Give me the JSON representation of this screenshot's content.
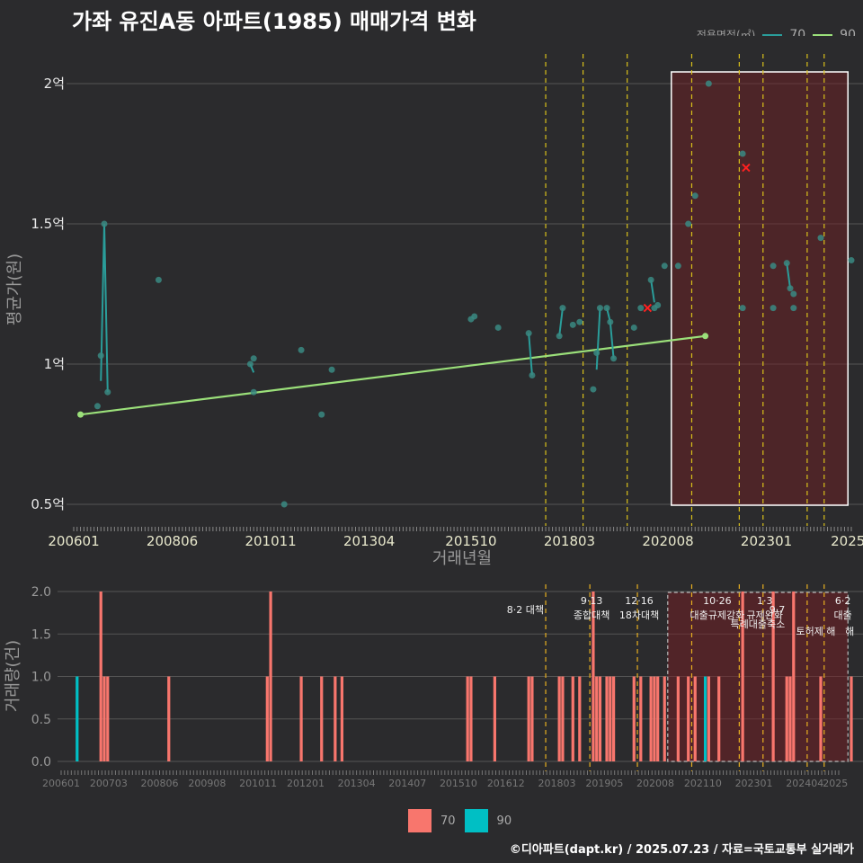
{
  "title": "가좌 유진A동 아파트(1985) 매매가격 변화",
  "legend_top": {
    "title": "전용면적(㎡)",
    "items": [
      {
        "label": "70",
        "color": "#2a9d9a"
      },
      {
        "label": "90",
        "color": "#9be07a"
      }
    ]
  },
  "legend_bottom": {
    "items": [
      {
        "label": "70",
        "color": "#f8766d"
      },
      {
        "label": "90",
        "color": "#00bfc4"
      }
    ]
  },
  "footer": "©디아파트(dapt.kr) / 2025.07.23 / 자료=국토교통부 실거래가",
  "chart_data": [
    {
      "type": "line",
      "xlabel": "거래년월",
      "ylabel": "평균가(원)",
      "ylim": [
        0.5,
        2.0
      ],
      "yticks": [
        {
          "value": 0.5,
          "label": "0.5억"
        },
        {
          "value": 1.0,
          "label": "1억"
        },
        {
          "value": 1.5,
          "label": "1.5억"
        },
        {
          "value": 2.0,
          "label": "2억"
        }
      ],
      "xticks": [
        "200601",
        "200806",
        "201011",
        "201304",
        "201510",
        "201803",
        "202008",
        "202301",
        "2025"
      ],
      "xtick_months": [
        0,
        29,
        58,
        87,
        117,
        146,
        175,
        204,
        228
      ],
      "policy_lines": [
        139,
        150,
        163,
        182,
        196,
        203,
        216,
        221
      ],
      "highlight_range": [
        176,
        228
      ],
      "series": [
        {
          "name": "70",
          "color": "#2a9d9a",
          "points": [
            {
              "m": 7,
              "v": 0.85
            },
            {
              "m": 8,
              "v": 1.03
            },
            {
              "m": 9,
              "v": 1.5
            },
            {
              "m": 10,
              "v": 0.9
            },
            {
              "m": 25,
              "v": 1.3
            },
            {
              "m": 52,
              "v": 1.0
            },
            {
              "m": 53,
              "v": 1.02
            },
            {
              "m": 53,
              "v": 0.9
            },
            {
              "m": 62,
              "v": 0.5
            },
            {
              "m": 67,
              "v": 1.05
            },
            {
              "m": 73,
              "v": 0.82
            },
            {
              "m": 76,
              "v": 0.98
            },
            {
              "m": 117,
              "v": 1.16
            },
            {
              "m": 118,
              "v": 1.17
            },
            {
              "m": 125,
              "v": 1.13
            },
            {
              "m": 134,
              "v": 1.11
            },
            {
              "m": 135,
              "v": 0.96
            },
            {
              "m": 143,
              "v": 1.1
            },
            {
              "m": 144,
              "v": 1.2
            },
            {
              "m": 147,
              "v": 1.14
            },
            {
              "m": 149,
              "v": 1.15
            },
            {
              "m": 153,
              "v": 0.91
            },
            {
              "m": 154,
              "v": 1.04
            },
            {
              "m": 155,
              "v": 1.2
            },
            {
              "m": 157,
              "v": 1.2
            },
            {
              "m": 158,
              "v": 1.15
            },
            {
              "m": 159,
              "v": 1.02
            },
            {
              "m": 165,
              "v": 1.13
            },
            {
              "m": 167,
              "v": 1.2
            },
            {
              "m": 170,
              "v": 1.3
            },
            {
              "m": 171,
              "v": 1.2
            },
            {
              "m": 172,
              "v": 1.21
            },
            {
              "m": 174,
              "v": 1.35
            },
            {
              "m": 178,
              "v": 1.35
            },
            {
              "m": 181,
              "v": 1.5
            },
            {
              "m": 183,
              "v": 1.6
            },
            {
              "m": 187,
              "v": 2.0
            },
            {
              "m": 197,
              "v": 1.75
            },
            {
              "m": 197,
              "v": 1.2
            },
            {
              "m": 206,
              "v": 1.35
            },
            {
              "m": 206,
              "v": 1.2
            },
            {
              "m": 210,
              "v": 1.36
            },
            {
              "m": 211,
              "v": 1.27
            },
            {
              "m": 212,
              "v": 1.25
            },
            {
              "m": 212,
              "v": 1.2
            },
            {
              "m": 220,
              "v": 1.45
            },
            {
              "m": 229,
              "v": 1.37
            }
          ],
          "line_segments": [
            [
              [
                8,
                0.94
              ],
              [
                9,
                1.5
              ],
              [
                10,
                0.9
              ]
            ],
            [
              [
                52,
                1.0
              ],
              [
                53,
                0.97
              ]
            ],
            [
              [
                134,
                1.11
              ],
              [
                135,
                0.96
              ]
            ],
            [
              [
                143,
                1.1
              ],
              [
                144,
                1.2
              ]
            ],
            [
              [
                154,
                0.98
              ],
              [
                155,
                1.2
              ]
            ],
            [
              [
                157,
                1.2
              ],
              [
                158,
                1.15
              ],
              [
                159,
                1.02
              ]
            ],
            [
              [
                170,
                1.3
              ],
              [
                171,
                1.22
              ]
            ],
            [
              [
                210,
                1.36
              ],
              [
                211,
                1.27
              ]
            ]
          ]
        },
        {
          "name": "90",
          "color": "#9be07a",
          "points": [
            {
              "m": 2,
              "v": 0.82
            },
            {
              "m": 186,
              "v": 1.1
            }
          ]
        }
      ],
      "markers": [
        {
          "m": 169,
          "v": 1.2,
          "symbol": "x",
          "color": "#ff2020"
        },
        {
          "m": 198,
          "v": 1.7,
          "symbol": "x",
          "color": "#ff2020"
        }
      ]
    },
    {
      "type": "bar",
      "ylabel": "거래량(건)",
      "ylim": [
        0,
        2.0
      ],
      "yticks": [
        {
          "value": 0.0,
          "label": "0.0"
        },
        {
          "value": 0.5,
          "label": "0.5"
        },
        {
          "value": 1.0,
          "label": "1.0"
        },
        {
          "value": 1.5,
          "label": "1.5"
        },
        {
          "value": 2.0,
          "label": "2.0"
        }
      ],
      "xticks": [
        "200601",
        "200703",
        "200806",
        "200908",
        "201011",
        "201201",
        "201304",
        "201407",
        "201510",
        "201612",
        "201803",
        "201905",
        "202008",
        "202110",
        "202301",
        "202404",
        "2025"
      ],
      "xtick_months": [
        0,
        14,
        29,
        43,
        58,
        72,
        87,
        102,
        117,
        131,
        146,
        160,
        175,
        189,
        204,
        219,
        228
      ],
      "policy_lines": [
        139,
        152,
        166,
        182,
        196,
        203,
        216,
        221
      ],
      "highlight_range": [
        176,
        228
      ],
      "bars": [
        {
          "m": 1,
          "v": 1,
          "s": "90"
        },
        {
          "m": 8,
          "v": 2,
          "s": "70"
        },
        {
          "m": 9,
          "v": 1,
          "s": "70"
        },
        {
          "m": 10,
          "v": 1,
          "s": "70"
        },
        {
          "m": 28,
          "v": 1,
          "s": "70"
        },
        {
          "m": 57,
          "v": 1,
          "s": "70"
        },
        {
          "m": 58,
          "v": 2,
          "s": "70"
        },
        {
          "m": 67,
          "v": 1,
          "s": "70"
        },
        {
          "m": 73,
          "v": 1,
          "s": "70"
        },
        {
          "m": 77,
          "v": 1,
          "s": "70"
        },
        {
          "m": 79,
          "v": 1,
          "s": "70"
        },
        {
          "m": 116,
          "v": 1,
          "s": "70"
        },
        {
          "m": 117,
          "v": 1,
          "s": "70"
        },
        {
          "m": 124,
          "v": 1,
          "s": "70"
        },
        {
          "m": 134,
          "v": 1,
          "s": "70"
        },
        {
          "m": 135,
          "v": 1,
          "s": "70"
        },
        {
          "m": 143,
          "v": 1,
          "s": "70"
        },
        {
          "m": 144,
          "v": 1,
          "s": "70"
        },
        {
          "m": 147,
          "v": 1,
          "s": "70"
        },
        {
          "m": 149,
          "v": 1,
          "s": "70"
        },
        {
          "m": 153,
          "v": 2,
          "s": "70"
        },
        {
          "m": 154,
          "v": 1,
          "s": "70"
        },
        {
          "m": 155,
          "v": 1,
          "s": "70"
        },
        {
          "m": 157,
          "v": 1,
          "s": "70"
        },
        {
          "m": 158,
          "v": 1,
          "s": "70"
        },
        {
          "m": 159,
          "v": 1,
          "s": "70"
        },
        {
          "m": 165,
          "v": 1,
          "s": "70"
        },
        {
          "m": 167,
          "v": 1,
          "s": "70"
        },
        {
          "m": 170,
          "v": 1,
          "s": "70"
        },
        {
          "m": 171,
          "v": 1,
          "s": "70"
        },
        {
          "m": 172,
          "v": 1,
          "s": "70"
        },
        {
          "m": 174,
          "v": 1,
          "s": "70"
        },
        {
          "m": 178,
          "v": 1,
          "s": "70"
        },
        {
          "m": 181,
          "v": 1,
          "s": "70"
        },
        {
          "m": 183,
          "v": 1,
          "s": "70"
        },
        {
          "m": 186,
          "v": 1,
          "s": "90"
        },
        {
          "m": 187,
          "v": 1,
          "s": "70"
        },
        {
          "m": 190,
          "v": 1,
          "s": "70"
        },
        {
          "m": 197,
          "v": 2,
          "s": "70"
        },
        {
          "m": 206,
          "v": 2,
          "s": "70"
        },
        {
          "m": 210,
          "v": 1,
          "s": "70"
        },
        {
          "m": 211,
          "v": 1,
          "s": "70"
        },
        {
          "m": 212,
          "v": 2,
          "s": "70"
        },
        {
          "m": 220,
          "v": 1,
          "s": "70"
        },
        {
          "m": 229,
          "v": 1,
          "s": "70"
        }
      ],
      "annotations": [
        {
          "m": 139,
          "lines": [
            "8·2 대책"
          ],
          "row": 1
        },
        {
          "m": 152,
          "lines": [
            "9·13",
            "종합대책"
          ],
          "row": 0
        },
        {
          "m": 166,
          "lines": [
            "12·16",
            "18차대책"
          ],
          "row": 0
        },
        {
          "m": 189,
          "lines": [
            "10·26",
            "대출규제강화"
          ],
          "row": 0
        },
        {
          "m": 203,
          "lines": [
            "1·3",
            "규제완화"
          ],
          "row": 0
        },
        {
          "m": 210,
          "lines": [
            "9·7",
            "특례대출축소"
          ],
          "row": 1
        },
        {
          "m": 218,
          "lines": [
            "토허제 해"
          ],
          "row": 2
        },
        {
          "m": 226,
          "lines": [
            "6·2",
            "대출"
          ],
          "row": 0
        },
        {
          "m": 228,
          "lines": [
            "해"
          ],
          "row": 2
        }
      ]
    }
  ]
}
